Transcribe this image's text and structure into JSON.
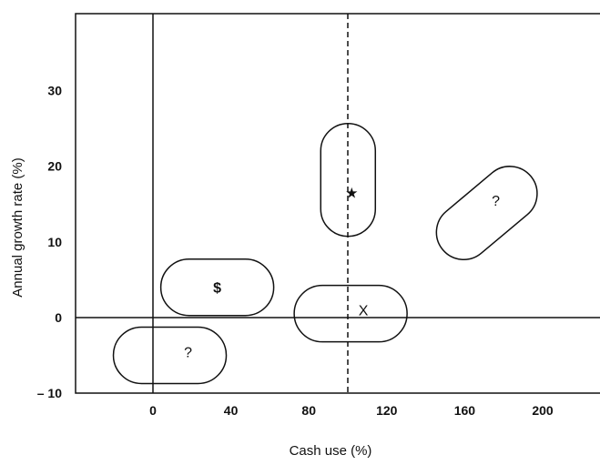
{
  "chart_data": {
    "type": "scatter",
    "title": "",
    "xlabel": "Cash use (%)",
    "ylabel": "Annual growth rate (%)",
    "xlim": [
      -38,
      236
    ],
    "ylim": [
      -10,
      40
    ],
    "xticks": [
      {
        "v": 0,
        "label": "0"
      },
      {
        "v": 40,
        "label": "40"
      },
      {
        "v": 80,
        "label": "80"
      },
      {
        "v": 120,
        "label": "120"
      },
      {
        "v": 160,
        "label": "160"
      },
      {
        "v": 200,
        "label": "200"
      }
    ],
    "yticks": [
      {
        "v": -10,
        "label": "– 10"
      },
      {
        "v": 0,
        "label": "0"
      },
      {
        "v": 10,
        "label": "10"
      },
      {
        "v": 20,
        "label": "20"
      },
      {
        "v": 30,
        "label": "30"
      }
    ],
    "reference_lines": {
      "x_solid": 0,
      "x_dashed": 100,
      "y_solid": 0
    },
    "grid": false,
    "regions": [
      {
        "label": "?",
        "x": 18,
        "y": -4.5
      },
      {
        "label": "$",
        "x": 33,
        "y": 4
      },
      {
        "label": "★",
        "x": 102,
        "y": 16.5
      },
      {
        "label": "X",
        "x": 108,
        "y": 1
      },
      {
        "label": "?",
        "x": 176,
        "y": 15.5
      }
    ]
  }
}
